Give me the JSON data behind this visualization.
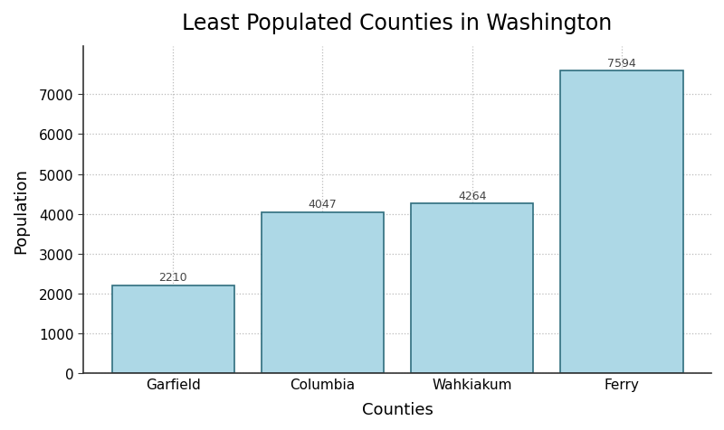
{
  "categories": [
    "Garfield",
    "Columbia",
    "Wahkiakum",
    "Ferry"
  ],
  "values": [
    2210,
    4047,
    4264,
    7594
  ],
  "bar_color": "#ADD8E6",
  "bar_edge_color": "#2F6E7E",
  "title": "Least Populated Counties in Washington",
  "xlabel": "Counties",
  "ylabel": "Population",
  "ylim": [
    0,
    8200
  ],
  "yticks": [
    0,
    1000,
    2000,
    3000,
    4000,
    5000,
    6000,
    7000
  ],
  "title_fontsize": 17,
  "label_fontsize": 13,
  "tick_fontsize": 11,
  "annotation_fontsize": 9,
  "background_color": "#ffffff",
  "grid_color": "#bbbbbb",
  "bar_width": 0.82
}
